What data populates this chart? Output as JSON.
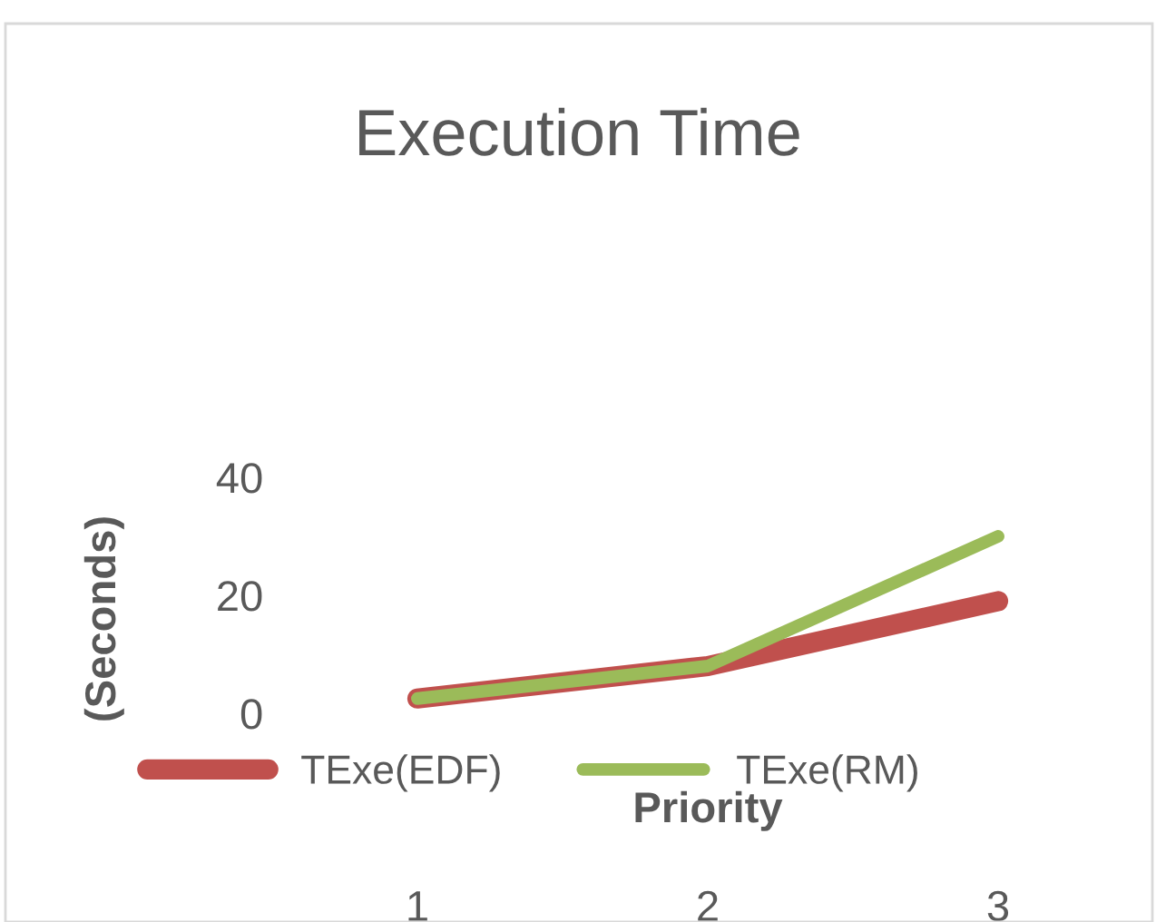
{
  "chart_data": {
    "type": "line",
    "title": "Execution Time",
    "xlabel": "Priority",
    "ylabel": "(Seconds)",
    "categories": [
      "1",
      "2",
      "3"
    ],
    "series": [
      {
        "name": "TExe(EDF)",
        "color": "#c0504d",
        "values": [
          2.5,
          8,
          19
        ]
      },
      {
        "name": "TExe(RM)",
        "color": "#9bbb59",
        "values": [
          2.5,
          8,
          30
        ]
      }
    ],
    "ylim": [
      0,
      40
    ],
    "yticks": [
      0,
      20,
      40
    ],
    "grid": false,
    "legend": "bottom",
    "marker": "none",
    "line_style": "solid"
  }
}
